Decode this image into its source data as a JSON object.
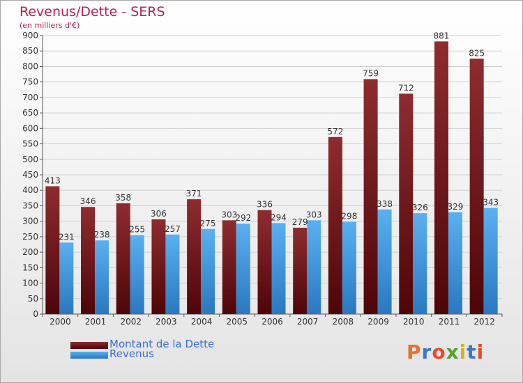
{
  "chart_data": {
    "type": "bar",
    "title": "Revenus/Dette - SERS",
    "subtitle": "(en milliers d'€)",
    "categories": [
      "2000",
      "2001",
      "2002",
      "2003",
      "2004",
      "2005",
      "2006",
      "2007",
      "2008",
      "2009",
      "2010",
      "2011",
      "2012"
    ],
    "series": [
      {
        "name": "Montant de la Dette",
        "color": "#7a1e22",
        "values": [
          413,
          346,
          358,
          306,
          371,
          303,
          336,
          279,
          572,
          759,
          712,
          881,
          825
        ]
      },
      {
        "name": "Revenus",
        "color": "#4aa2e6",
        "values": [
          231,
          238,
          255,
          257,
          275,
          292,
          294,
          303,
          298,
          338,
          326,
          329,
          343
        ]
      }
    ],
    "ylim": [
      0,
      900
    ],
    "ytick_step": 50,
    "grid": true,
    "legend_position": "bottom-left"
  },
  "branding": {
    "logo_text": "Proxiti",
    "logo_colors": [
      "#e8702a",
      "#3a78c8",
      "#e84a2a",
      "#5aa02a",
      "#d8b020",
      "#3a78c8",
      "#e84a2a"
    ]
  }
}
